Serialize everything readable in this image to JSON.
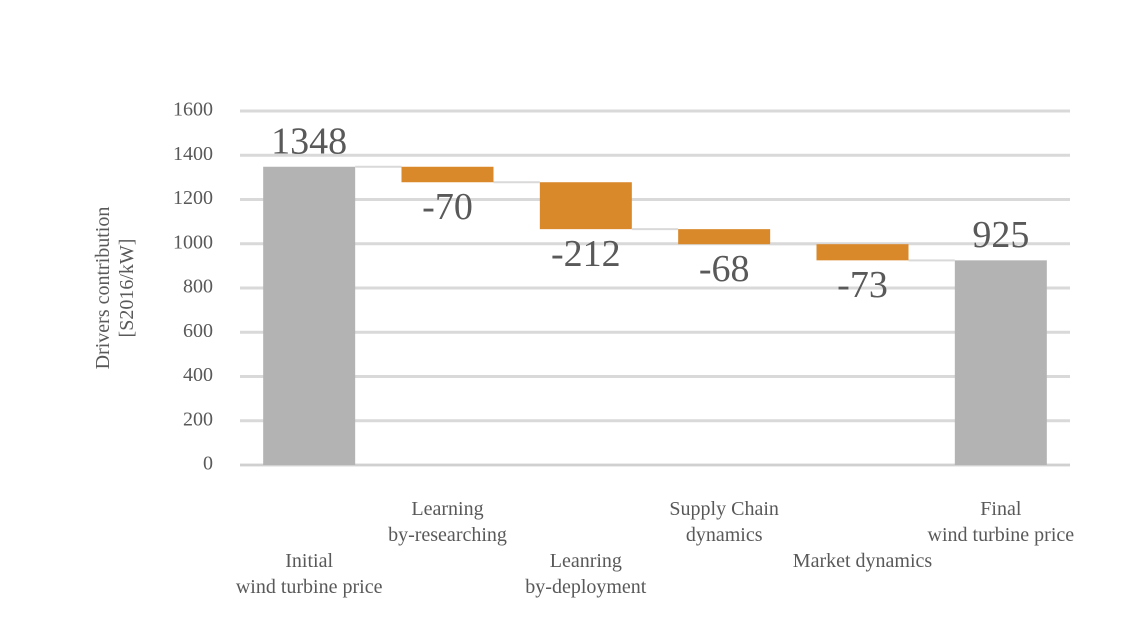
{
  "chart_data": {
    "type": "waterfall",
    "y_label": "Drivers contribution\n[S2016/kW]",
    "categories": [
      "Initial\nwind turbine price",
      "Learning\nby-researching",
      "Leanring\nby-deployment",
      "Supply Chain\ndynamics",
      "Market dynamics",
      "Final\nwind turbine price"
    ],
    "values": [
      1348,
      -70,
      -212,
      -68,
      -73,
      925
    ],
    "total_color": "#b3b3b3",
    "decrease_color": "#d9882a",
    "ylim": [
      0,
      1600
    ],
    "yticks": [
      0,
      200,
      400,
      600,
      800,
      1000,
      1200,
      1400,
      1600
    ],
    "grid": true
  }
}
